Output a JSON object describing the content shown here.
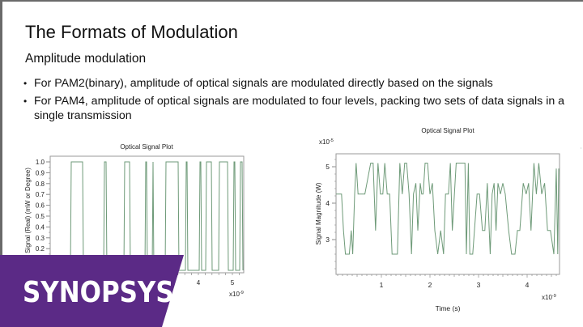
{
  "slide": {
    "title": "The Formats of Modulation",
    "subtitle": "Amplitude modulation",
    "bullets": [
      "For PAM2(binary), amplitude of optical signals are modulated directly based on the signals",
      "For PAM4, amplitude of optical signals are modulated to four levels, packing two sets of data signals in a single transmission"
    ],
    "bullet_glyph": "•"
  },
  "brand": {
    "logo_text": "SYNOPSYS",
    "registered_mark": "®",
    "band_color": "#5b2a86",
    "text_color": "#ffffff"
  },
  "colors": {
    "trace": "#6e9a78",
    "axis": "#8a8a8a",
    "text": "#1a1a1a"
  },
  "chart_data": [
    {
      "type": "line",
      "title": "Optical Signal Plot",
      "xlabel": "",
      "ylabel": "Signal (Real) (mW or Degree)",
      "x_multiplier": "x10-9",
      "x_ticks": [
        "4",
        "5"
      ],
      "y_ticks": [
        "1.0",
        "0.9",
        "0.8",
        "0.7",
        "0.6",
        "0.5",
        "0.4",
        "0.3",
        "0.2"
      ],
      "ylim": [
        0,
        1.0
      ],
      "xlim": [
        0,
        5.3
      ],
      "legend": "none",
      "grid": false,
      "description": "PAM2 binary waveform switching between 0 and 1.0",
      "pulses_high_ns": [
        [
          0.55,
          0.95
        ],
        [
          1.55,
          1.65
        ],
        [
          2.15,
          2.35
        ],
        [
          2.8,
          2.85
        ],
        [
          2.95,
          3.0
        ],
        [
          3.35,
          3.75
        ],
        [
          3.95,
          4.0
        ],
        [
          4.35,
          4.4
        ],
        [
          4.5,
          4.7
        ],
        [
          4.9,
          5.15
        ],
        [
          5.3,
          5.35
        ],
        [
          5.5,
          5.55
        ]
      ]
    },
    {
      "type": "line",
      "title": "Optical Signal Plot",
      "xlabel": "Time (s)",
      "ylabel": "Signal Magnitude (W)",
      "x_multiplier": "x10-9",
      "y_multiplier": "x10-5",
      "x_ticks": [
        "1",
        "2",
        "3",
        "4"
      ],
      "y_ticks": [
        "5",
        "4",
        "3"
      ],
      "ylim": [
        2.1,
        5.35
      ],
      "xlim": [
        0.07,
        4.65
      ],
      "legend": "none",
      "grid": false,
      "description": "PAM4 waveform with four levels ~2.6, ~3.25, ~4.25, ~5.1 (x10^-5 W)",
      "x": [
        0.07,
        0.18,
        0.22,
        0.26,
        0.34,
        0.38,
        0.41,
        0.45,
        0.48,
        0.52,
        0.57,
        0.66,
        0.78,
        0.83,
        0.88,
        0.93,
        0.98,
        1.03,
        1.07,
        1.12,
        1.17,
        1.22,
        1.33,
        1.38,
        1.43,
        1.48,
        1.52,
        1.57,
        1.62,
        1.66,
        1.71,
        1.75,
        1.8,
        1.83,
        1.86,
        1.9,
        1.95,
        2.0,
        2.05,
        2.1,
        2.16,
        2.22,
        2.28,
        2.32,
        2.38,
        2.42,
        2.46,
        2.54,
        2.6,
        2.72,
        2.75,
        2.79,
        2.82,
        2.88,
        2.97,
        3.02,
        3.08,
        3.13,
        3.18,
        3.24,
        3.28,
        3.32,
        3.36,
        3.4,
        3.45,
        3.5,
        3.55,
        3.62,
        3.68,
        3.75,
        3.8,
        3.85,
        3.92,
        3.98,
        4.03,
        4.08,
        4.14,
        4.19,
        4.24,
        4.3,
        4.36,
        4.42,
        4.48,
        4.55,
        4.6,
        4.63,
        4.65
      ],
      "values": [
        4.25,
        4.25,
        3.25,
        2.6,
        2.6,
        3.25,
        2.6,
        4.25,
        5.1,
        4.25,
        4.25,
        4.25,
        5.1,
        5.1,
        3.25,
        5.1,
        4.25,
        4.25,
        5.1,
        4.25,
        4.25,
        2.6,
        2.6,
        5.1,
        4.25,
        5.1,
        5.1,
        4.25,
        2.6,
        4.25,
        4.55,
        3.25,
        4.55,
        4.25,
        4.25,
        5.1,
        5.1,
        4.25,
        4.55,
        3.25,
        2.6,
        3.25,
        2.6,
        4.25,
        4.25,
        5.1,
        3.25,
        5.1,
        5.1,
        5.1,
        2.6,
        5.1,
        2.6,
        2.6,
        4.25,
        4.25,
        3.25,
        3.25,
        4.55,
        2.6,
        4.25,
        4.55,
        3.25,
        4.55,
        4.25,
        4.55,
        4.25,
        3.25,
        2.6,
        2.6,
        3.25,
        3.25,
        4.55,
        4.25,
        4.55,
        3.25,
        5.1,
        4.25,
        5.1,
        4.25,
        4.55,
        3.25,
        3.25,
        2.6,
        4.95,
        2.6,
        4.95
      ]
    }
  ]
}
